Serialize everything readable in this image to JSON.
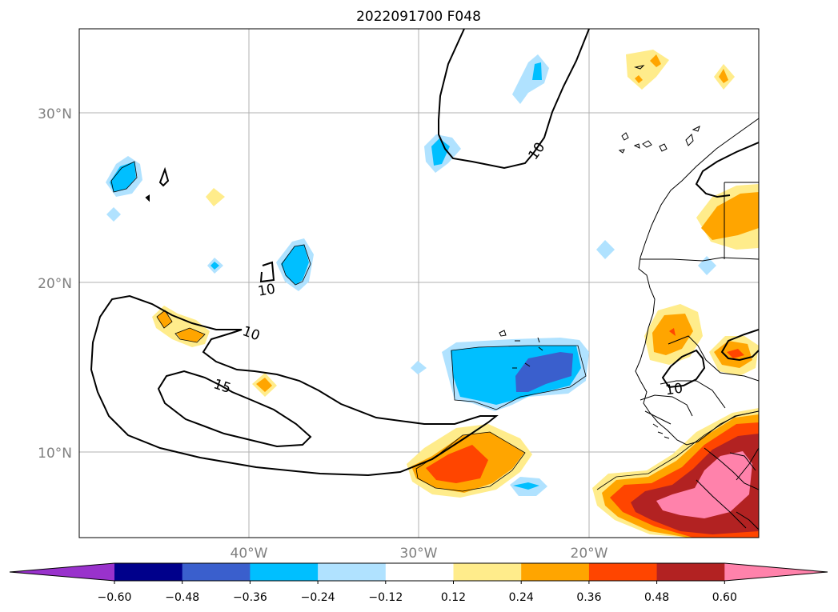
{
  "title": "2022091700 F048",
  "axes": {
    "lat_labels": [
      "30°N",
      "20°N",
      "10°N"
    ],
    "lon_labels": [
      "40°W",
      "30°W",
      "20°W"
    ]
  },
  "contour_labels": [
    "10",
    "10",
    "10",
    "15",
    "10"
  ],
  "colorbar": {
    "ticks": [
      "−0.60",
      "−0.48",
      "−0.36",
      "−0.24",
      "−0.12",
      "0.12",
      "0.24",
      "0.36",
      "0.48",
      "0.60"
    ],
    "colors": [
      "#9932cc",
      "#00008b",
      "#3a5fcd",
      "#00bfff",
      "#b0e2ff",
      "#ffffff",
      "#ffec8b",
      "#ffa500",
      "#ff4500",
      "#b22222",
      "#ff82ab"
    ]
  }
}
